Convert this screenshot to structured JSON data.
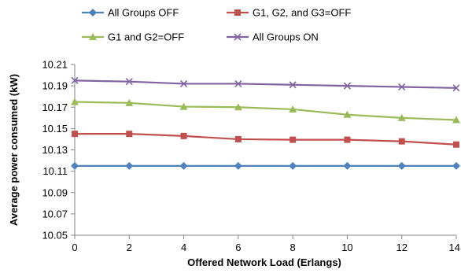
{
  "chart_data": {
    "type": "line",
    "title": "",
    "xlabel": "Offered Network Load (Erlangs)",
    "ylabel": "Average power consumed (kW)",
    "x": [
      0,
      2,
      4,
      6,
      8,
      10,
      12,
      14
    ],
    "xlim": [
      0,
      14
    ],
    "ylim": [
      10.05,
      10.21
    ],
    "xticks": [
      0,
      2,
      4,
      6,
      8,
      10,
      12,
      14
    ],
    "yticks": [
      10.05,
      10.07,
      10.09,
      10.11,
      10.13,
      10.15,
      10.17,
      10.19,
      10.21
    ],
    "ytick_labels": [
      "10.05",
      "10.07",
      "10.09",
      "10.11",
      "10.13",
      "10.15",
      "10.17",
      "10.19",
      "10.21"
    ],
    "grid": false,
    "legend_position": "top",
    "series": [
      {
        "name": "All Groups OFF",
        "color": "#4F81BD",
        "marker": "diamond",
        "values": [
          10.115,
          10.115,
          10.115,
          10.115,
          10.115,
          10.115,
          10.115,
          10.115
        ]
      },
      {
        "name": "G1, G2, and G3=OFF",
        "color": "#C0504D",
        "marker": "square",
        "values": [
          10.145,
          10.145,
          10.143,
          10.14,
          10.1395,
          10.1395,
          10.138,
          10.135
        ]
      },
      {
        "name": "G1 and G2=OFF",
        "color": "#9BBB59",
        "marker": "triangle",
        "values": [
          10.175,
          10.174,
          10.1705,
          10.17,
          10.168,
          10.163,
          10.16,
          10.158
        ]
      },
      {
        "name": "All Groups ON",
        "color": "#8064A2",
        "marker": "x",
        "values": [
          10.195,
          10.194,
          10.192,
          10.192,
          10.191,
          10.19,
          10.189,
          10.188
        ]
      }
    ]
  }
}
